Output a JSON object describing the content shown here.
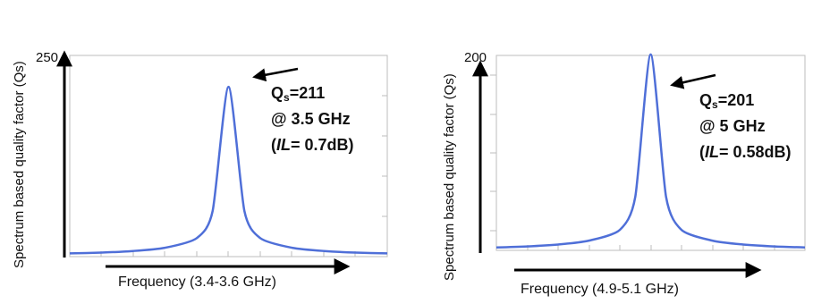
{
  "chart_data": [
    {
      "type": "line",
      "ylabel": "Spectrum based quality factor (Qs)",
      "xlabel": "Frequency (3.4-3.6 GHz)",
      "ytick_top": "250",
      "ytick_bottom": "",
      "ylim": [
        0,
        250
      ],
      "xlim": [
        3.4,
        3.6
      ],
      "grid": false,
      "series": [
        {
          "color": "#4f6fd8",
          "x": [
            3.4,
            3.42,
            3.44,
            3.46,
            3.48,
            3.49,
            3.5,
            3.51,
            3.52,
            3.54,
            3.56,
            3.58,
            3.6
          ],
          "values": [
            4,
            5,
            7,
            11,
            23,
            57,
            211,
            57,
            23,
            11,
            7,
            5,
            4
          ]
        }
      ],
      "annotation": {
        "x": 3.5,
        "y": 211,
        "name_main": "Q",
        "name_sub": "s",
        "value": "=211",
        "line2": "@ 3.5 GHz",
        "line3_open": "(",
        "line3_italic": "IL",
        "line3_rest": "= 0.7dB)"
      }
    },
    {
      "type": "line",
      "ylabel": "Spectrum based quality factor (Qs)",
      "xlabel": "Frequency (4.9-5.1 GHz)",
      "ytick_top": "200",
      "ytick_bottom": "",
      "ylim": [
        0,
        200
      ],
      "xlim": [
        4.9,
        5.1
      ],
      "grid": false,
      "series": [
        {
          "color": "#4f6fd8",
          "x": [
            4.9,
            4.92,
            4.94,
            4.96,
            4.98,
            4.99,
            5.0,
            5.01,
            5.02,
            5.04,
            5.06,
            5.08,
            5.1
          ],
          "values": [
            3,
            4,
            6,
            10,
            21,
            55,
            201,
            55,
            21,
            10,
            6,
            4,
            3
          ]
        }
      ],
      "annotation": {
        "x": 5.0,
        "y": 201,
        "name_main": "Q",
        "name_sub": "s",
        "value": "=201",
        "line2": "@ 5 GHz",
        "line3_open": "(",
        "line3_italic": "IL",
        "line3_rest": "= 0.58dB)"
      }
    }
  ]
}
